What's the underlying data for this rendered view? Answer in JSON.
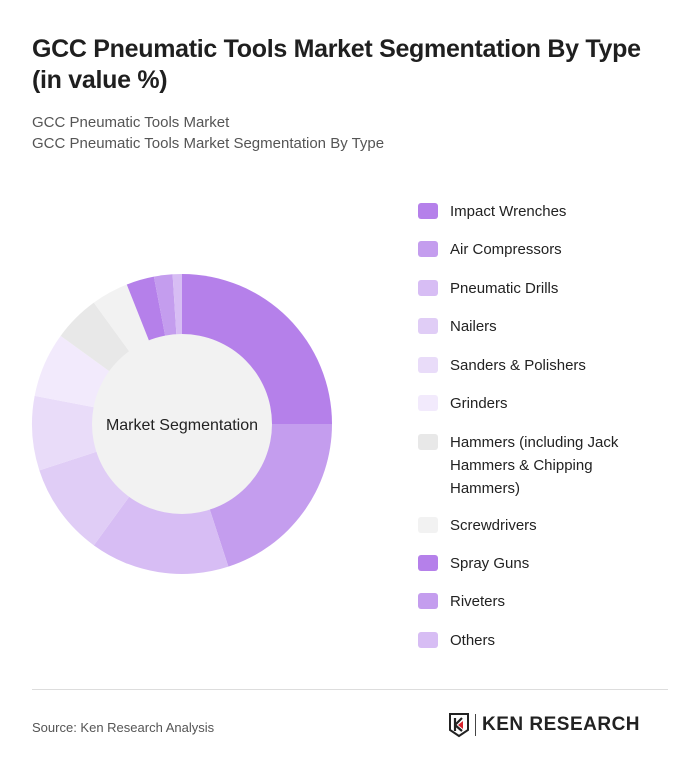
{
  "header": {
    "title": "GCC Pneumatic Tools Market Segmentation By Type (in value %)",
    "breadcrumb_1": "GCC Pneumatic Tools Market",
    "breadcrumb_2": "GCC Pneumatic Tools Market Segmentation By Type"
  },
  "chart_data": {
    "type": "pie",
    "subtype": "donut",
    "center_label": "Market Segmentation",
    "legend_position": "right",
    "categories": [
      "Impact Wrenches",
      "Air Compressors",
      "Pneumatic Drills",
      "Nailers",
      "Sanders & Polishers",
      "Grinders",
      "Hammers (including Jack Hammers & Chipping Hammers)",
      "Screwdrivers",
      "Spray Guns",
      "Riveters",
      "Others"
    ],
    "values": [
      25,
      20,
      15,
      10,
      8,
      7,
      5,
      4,
      3,
      2,
      1
    ],
    "colors": [
      "#b580ea",
      "#c49dee",
      "#d7bdf4",
      "#e0cdf6",
      "#e9dcf9",
      "#f2eafc",
      "#e8e8e8",
      "#f2f2f2",
      "#b580ea",
      "#c49dee",
      "#d7bdf4"
    ]
  },
  "footer": {
    "source": "Source: Ken Research Analysis",
    "logo_text": "KEN RESEARCH"
  }
}
